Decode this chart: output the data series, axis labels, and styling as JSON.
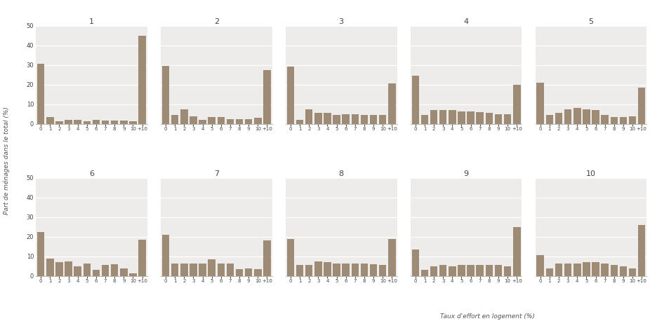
{
  "deciles": {
    "1": [
      30.5,
      3.5,
      1.2,
      2.0,
      2.0,
      1.5,
      2.0,
      1.8,
      1.8,
      1.8,
      1.5,
      45.0
    ],
    "2": [
      29.5,
      4.5,
      7.5,
      4.0,
      2.0,
      3.5,
      3.5,
      2.5,
      2.5,
      2.5,
      3.0,
      27.5
    ],
    "3": [
      29.0,
      2.0,
      7.5,
      5.5,
      5.5,
      4.5,
      5.0,
      5.0,
      4.5,
      4.5,
      4.5,
      20.5
    ],
    "4": [
      24.5,
      4.5,
      7.0,
      7.0,
      7.0,
      6.5,
      6.5,
      6.0,
      5.5,
      5.0,
      5.0,
      20.0
    ],
    "5": [
      21.0,
      4.5,
      5.5,
      7.5,
      8.0,
      7.5,
      7.0,
      4.5,
      3.5,
      3.5,
      4.0,
      18.5
    ],
    "6": [
      22.5,
      9.0,
      7.0,
      7.5,
      5.0,
      6.5,
      3.0,
      5.5,
      6.0,
      4.0,
      1.5,
      18.5
    ],
    "7": [
      21.0,
      6.5,
      6.5,
      6.5,
      6.5,
      8.5,
      6.5,
      6.5,
      3.5,
      4.0,
      3.5,
      18.0
    ],
    "8": [
      19.0,
      5.5,
      5.5,
      7.5,
      7.0,
      6.5,
      6.5,
      6.5,
      6.5,
      6.0,
      5.5,
      19.0
    ],
    "9": [
      13.5,
      3.0,
      5.0,
      5.5,
      5.0,
      5.5,
      5.5,
      5.5,
      5.5,
      5.5,
      5.0,
      25.0
    ],
    "10": [
      10.5,
      4.0,
      6.5,
      6.5,
      6.5,
      7.0,
      7.0,
      6.5,
      5.5,
      5.0,
      4.0,
      26.0
    ]
  },
  "x_labels": [
    "0",
    "1",
    "2",
    "3",
    "4",
    "5",
    "6",
    "7",
    "8",
    "9",
    "10",
    "+10"
  ],
  "bar_color": "#9e8b76",
  "background_color": "#eeeceb",
  "figure_background": "#ffffff",
  "ylim": [
    0,
    50
  ],
  "yticks": [
    0,
    10,
    20,
    30,
    40,
    50
  ],
  "ylabel": "Part de ménages dans le total (%)",
  "subplot_titles": [
    "1",
    "2",
    "3",
    "4",
    "5",
    "6",
    "7",
    "8",
    "9",
    "10"
  ],
  "grid_color": "#ffffff",
  "spine_color": "#aaaaaa",
  "xlabel_bottom": "Taux d'effort en logement (%)"
}
